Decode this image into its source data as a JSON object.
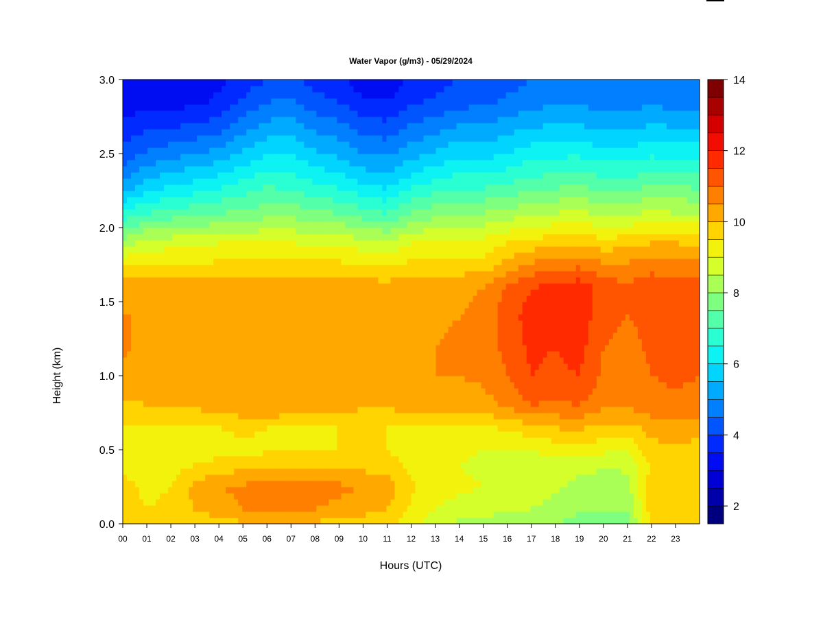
{
  "chart_data": {
    "type": "heatmap",
    "title": "Water Vapor (g/m3) - 05/29/2024",
    "xlabel": "Hours (UTC)",
    "ylabel": "Height (km)",
    "x_ticks": [
      "00",
      "01",
      "02",
      "03",
      "04",
      "05",
      "06",
      "07",
      "08",
      "09",
      "10",
      "11",
      "12",
      "13",
      "14",
      "15",
      "16",
      "17",
      "18",
      "19",
      "20",
      "21",
      "22",
      "23"
    ],
    "y_ticks": [
      "0.0",
      "0.5",
      "1.0",
      "1.5",
      "2.0",
      "2.5",
      "3.0"
    ],
    "xlim": [
      0,
      24
    ],
    "ylim": [
      0,
      3
    ],
    "colorbar": {
      "ticks": [
        "2",
        "4",
        "6",
        "8",
        "10",
        "12",
        "14"
      ],
      "range": [
        1.5,
        14
      ],
      "levels": 25,
      "colors": [
        "#00007f",
        "#0000b2",
        "#0000e5",
        "#0019ff",
        "#004cff",
        "#007fff",
        "#00b2ff",
        "#00e5ff",
        "#19ffe5",
        "#4cffb2",
        "#7fff7f",
        "#b2ff4c",
        "#e5ff19",
        "#ffe500",
        "#ffb200",
        "#ff7f00",
        "#ff4c00",
        "#ff1900",
        "#e50000",
        "#b20000",
        "#7f0000"
      ]
    },
    "height_profile_km": [
      0.0,
      0.1,
      0.25,
      0.4,
      0.5,
      0.65,
      0.8,
      1.0,
      1.2,
      1.4,
      1.6,
      1.75,
      1.9,
      2.1,
      2.3,
      2.5,
      2.7,
      2.85,
      3.0
    ],
    "time_profile_hours": [
      0,
      1,
      2,
      3,
      4,
      5,
      6,
      7,
      8,
      9,
      10,
      11,
      12,
      13,
      14,
      15,
      16,
      17,
      18,
      19,
      20,
      21,
      22,
      23,
      24
    ],
    "values_g_m3": [
      [
        10.0,
        9.6,
        9.7,
        9.3,
        9.2,
        9.5,
        9.9,
        10.4,
        10.6,
        10.5,
        10.2,
        9.5,
        8.2,
        6.6,
        5.0,
        4.2,
        3.6,
        3.2,
        3.0
      ],
      [
        9.6,
        9.5,
        9.4,
        9.1,
        9.0,
        9.4,
        10.0,
        10.3,
        10.3,
        10.5,
        10.4,
        9.6,
        8.7,
        7.0,
        5.6,
        4.6,
        3.8,
        3.3,
        3.1
      ],
      [
        9.5,
        9.6,
        9.5,
        9.3,
        9.1,
        9.5,
        10.0,
        10.2,
        10.2,
        10.4,
        10.3,
        9.5,
        8.8,
        7.2,
        5.9,
        4.8,
        3.9,
        3.3,
        3.1
      ],
      [
        9.6,
        10.0,
        10.2,
        9.5,
        9.2,
        9.4,
        10.1,
        10.3,
        10.2,
        10.4,
        10.3,
        9.5,
        8.8,
        7.3,
        6.1,
        5.0,
        4.0,
        3.4,
        3.2
      ],
      [
        9.8,
        10.3,
        10.5,
        9.7,
        9.3,
        9.5,
        10.3,
        10.4,
        10.3,
        10.5,
        10.3,
        9.6,
        9.0,
        7.5,
        6.3,
        5.2,
        4.2,
        3.6,
        3.4
      ],
      [
        9.9,
        10.5,
        10.6,
        9.8,
        9.4,
        9.6,
        10.4,
        10.4,
        10.3,
        10.4,
        10.3,
        9.6,
        9.0,
        7.6,
        6.6,
        5.6,
        4.7,
        4.1,
        3.7
      ],
      [
        10.0,
        10.7,
        10.8,
        9.9,
        9.4,
        9.5,
        10.5,
        10.5,
        10.3,
        10.3,
        10.2,
        9.6,
        9.0,
        7.8,
        6.9,
        6.0,
        5.1,
        4.5,
        4.0
      ],
      [
        10.0,
        10.7,
        10.8,
        9.9,
        9.4,
        9.5,
        10.4,
        10.5,
        10.4,
        10.3,
        10.2,
        9.6,
        9.0,
        7.8,
        6.8,
        6.0,
        5.2,
        4.6,
        4.1
      ],
      [
        9.9,
        10.5,
        10.7,
        9.9,
        9.5,
        9.4,
        10.3,
        10.4,
        10.4,
        10.3,
        10.2,
        9.6,
        8.9,
        7.6,
        6.5,
        5.6,
        4.8,
        4.2,
        3.8
      ],
      [
        9.8,
        10.4,
        10.6,
        9.9,
        9.5,
        9.5,
        10.2,
        10.4,
        10.4,
        10.3,
        10.2,
        9.6,
        8.9,
        7.5,
        6.3,
        5.4,
        4.6,
        4.0,
        3.6
      ],
      [
        9.7,
        10.2,
        10.5,
        9.8,
        9.5,
        9.5,
        10.1,
        10.3,
        10.4,
        10.3,
        10.2,
        9.6,
        8.7,
        7.2,
        6.0,
        5.0,
        4.2,
        3.6,
        3.2
      ],
      [
        9.6,
        10.0,
        10.3,
        9.7,
        9.5,
        9.5,
        10.1,
        10.3,
        10.4,
        10.3,
        10.2,
        9.5,
        8.6,
        7.0,
        5.8,
        4.9,
        4.1,
        3.5,
        3.2
      ],
      [
        9.2,
        9.4,
        9.6,
        9.4,
        9.3,
        9.4,
        10.2,
        10.4,
        10.4,
        10.3,
        10.3,
        9.6,
        9.0,
        7.5,
        6.3,
        5.3,
        4.5,
        3.9,
        3.6
      ],
      [
        8.7,
        9.0,
        9.2,
        9.1,
        9.2,
        9.4,
        10.3,
        10.5,
        10.5,
        10.4,
        10.4,
        9.7,
        9.1,
        7.8,
        6.6,
        5.6,
        4.7,
        4.1,
        3.8
      ],
      [
        8.4,
        8.8,
        9.1,
        9.0,
        9.1,
        9.4,
        10.3,
        10.5,
        10.6,
        10.5,
        10.4,
        9.7,
        9.2,
        8.0,
        6.8,
        5.9,
        5.0,
        4.3,
        4.0
      ],
      [
        8.3,
        8.7,
        9.0,
        8.9,
        9.0,
        9.4,
        10.3,
        10.6,
        10.6,
        10.6,
        10.5,
        9.7,
        9.2,
        8.0,
        6.8,
        5.8,
        5.0,
        4.4,
        4.1
      ],
      [
        8.2,
        8.6,
        8.9,
        8.9,
        9.0,
        9.6,
        10.6,
        11.0,
        11.2,
        11.3,
        11.1,
        10.2,
        9.5,
        8.2,
        7.0,
        6.0,
        5.2,
        4.6,
        4.3
      ],
      [
        8.2,
        8.5,
        8.8,
        8.8,
        9.0,
        9.8,
        11.0,
        11.5,
        11.6,
        11.7,
        11.5,
        10.6,
        9.7,
        8.4,
        7.2,
        6.3,
        5.4,
        4.8,
        4.5
      ],
      [
        8.0,
        8.3,
        8.6,
        8.8,
        9.2,
        10.0,
        10.9,
        11.4,
        11.5,
        11.7,
        11.6,
        10.8,
        9.8,
        8.5,
        7.3,
        6.4,
        5.5,
        4.9,
        4.6
      ],
      [
        7.8,
        8.1,
        8.3,
        8.7,
        9.4,
        10.1,
        11.0,
        11.5,
        11.7,
        11.8,
        11.8,
        10.9,
        9.9,
        8.6,
        7.4,
        6.4,
        5.5,
        4.9,
        4.6
      ],
      [
        7.7,
        8.0,
        8.2,
        8.6,
        9.1,
        9.8,
        10.6,
        10.9,
        11.0,
        11.2,
        11.3,
        10.6,
        9.7,
        8.4,
        7.2,
        6.2,
        5.3,
        4.8,
        4.5
      ],
      [
        7.8,
        8.0,
        8.3,
        8.6,
        9.1,
        9.8,
        10.6,
        10.8,
        10.8,
        11.0,
        11.1,
        10.6,
        9.8,
        8.4,
        7.2,
        6.2,
        5.3,
        4.8,
        4.5
      ],
      [
        9.6,
        9.8,
        9.8,
        9.6,
        9.8,
        10.2,
        10.8,
        11.0,
        11.1,
        11.2,
        11.3,
        10.8,
        10.0,
        8.6,
        7.4,
        6.4,
        5.5,
        4.9,
        4.6
      ],
      [
        9.8,
        10.0,
        9.9,
        9.7,
        9.9,
        10.3,
        10.9,
        11.1,
        11.2,
        11.3,
        11.2,
        10.7,
        10.0,
        8.5,
        7.4,
        6.3,
        5.4,
        4.8,
        4.5
      ],
      [
        9.7,
        9.9,
        9.9,
        9.6,
        9.8,
        10.2,
        10.8,
        11.0,
        11.1,
        11.2,
        11.2,
        10.6,
        9.9,
        8.5,
        7.3,
        6.3,
        5.4,
        4.8,
        4.5
      ]
    ]
  }
}
